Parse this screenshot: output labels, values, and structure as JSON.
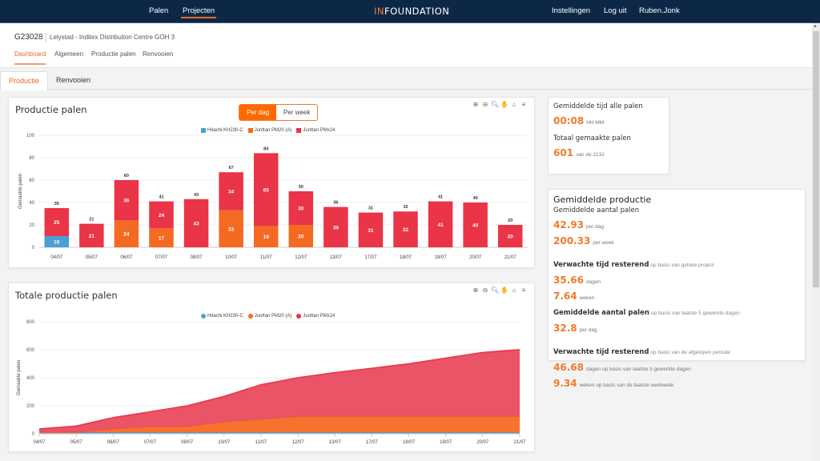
{
  "nav": {
    "left": [
      "Palen",
      "Projecten"
    ],
    "active": "Projecten",
    "logo_in": "IN",
    "logo_rest": "FOUNDATION",
    "right": [
      "Instellingen",
      "Log uit",
      "Ruben.Jonk"
    ]
  },
  "project": {
    "code": "G23028",
    "name": "Lelystad - Inditex Distribution Centre GOH 3",
    "subtabs": [
      "Dashboard",
      "Algemeen",
      "Productie palen",
      "Renvooien"
    ],
    "active_subtab": "Dashboard"
  },
  "tabs": [
    "Productie",
    "Renvooien"
  ],
  "active_tab": "Productie",
  "toolbar_icons": [
    "zoom-in-icon",
    "zoom-out-icon",
    "zoom-select-icon",
    "pan-icon",
    "home-icon",
    "menu-icon"
  ],
  "chart_data": [
    {
      "type": "bar",
      "stacked": true,
      "title": "Productie palen",
      "toggle": [
        "Per dag",
        "Per week"
      ],
      "toggle_active": "Per dag",
      "ylabel": "Gemaakte palen",
      "xlabel": "",
      "ylim": [
        0,
        100
      ],
      "yticks": [
        0,
        20,
        40,
        60,
        80,
        100
      ],
      "grid": true,
      "legend": "top-right",
      "categories": [
        "04/07",
        "05/07",
        "06/07",
        "07/07",
        "08/07",
        "10/07",
        "11/07",
        "12/07",
        "13/07",
        "17/07",
        "18/07",
        "19/07",
        "20/07",
        "21/07"
      ],
      "series": [
        {
          "name": "Hitachi KH230-C",
          "color": "#4a9fd6",
          "values": [
            10,
            0,
            0,
            0,
            0,
            0,
            0,
            0,
            0,
            0,
            0,
            0,
            0,
            0
          ]
        },
        {
          "name": "Junttan PM20 (A)",
          "color": "#f56a23",
          "values": [
            0,
            0,
            24,
            17,
            0,
            33,
            19,
            20,
            0,
            0,
            0,
            0,
            0,
            0
          ]
        },
        {
          "name": "Junttan PMx24",
          "color": "#ea3447",
          "values": [
            25,
            21,
            36,
            24,
            43,
            34,
            65,
            30,
            36,
            31,
            32,
            41,
            40,
            20
          ]
        }
      ],
      "totals": [
        35,
        21,
        60,
        41,
        43,
        67,
        84,
        50,
        36,
        31,
        32,
        41,
        40,
        20
      ]
    },
    {
      "type": "area",
      "stacked": true,
      "title": "Totale productie palen",
      "ylabel": "Gemaakte palen",
      "xlabel": "",
      "ylim": [
        0,
        800
      ],
      "yticks": [
        0,
        200,
        400,
        600,
        800
      ],
      "grid": true,
      "legend": "top-right",
      "categories": [
        "04/07",
        "05/07",
        "06/07",
        "07/07",
        "08/07",
        "10/07",
        "11/07",
        "12/07",
        "13/07",
        "17/07",
        "18/07",
        "19/07",
        "20/07",
        "21/07"
      ],
      "series": [
        {
          "name": "Hitachi KH230-C",
          "color": "#4a9fd6",
          "values": [
            10,
            10,
            10,
            10,
            10,
            10,
            10,
            10,
            10,
            10,
            10,
            10,
            10,
            10
          ]
        },
        {
          "name": "Junttan PM20 (A)",
          "color": "#f56a23",
          "values": [
            0,
            0,
            24,
            41,
            41,
            74,
            93,
            113,
            113,
            113,
            113,
            113,
            113,
            113
          ]
        },
        {
          "name": "Junttan PMx24",
          "color": "#ea3447",
          "values": [
            25,
            46,
            82,
            106,
            149,
            183,
            248,
            278,
            314,
            345,
            377,
            418,
            458,
            478
          ]
        }
      ]
    }
  ],
  "stats_card": {
    "avg_time_label": "Gemiddelde tijd alle palen",
    "avg_time_value": "00:08",
    "avg_time_unit": "HH:MM",
    "total_label": "Totaal gemaakte palen",
    "total_value": "601",
    "total_unit": "van de 2132"
  },
  "avg_card": {
    "title": "Gemiddelde productie",
    "avg_palen_label": "Gemiddelde aantal palen",
    "per_day_value": "42.93",
    "per_day_unit": "per dag",
    "per_week_value": "200.33",
    "per_week_unit": "per week",
    "remaining_label": "Verwachte tijd resterend",
    "remaining_note": "op basis van gehele project",
    "remaining_days": "35.66",
    "remaining_days_unit": "dagen",
    "remaining_weeks": "7.64",
    "remaining_weeks_unit": "weken",
    "avg5_label": "Gemiddelde aantal palen",
    "avg5_note": "op basis van laatste 5 gewerkte dagen",
    "avg5_value": "32.8",
    "avg5_unit": "per dag",
    "remaining2_label": "Verwachte tijd resterend",
    "remaining2_note": "op basis van de afgelopen periode",
    "remaining2_days": "46.68",
    "remaining2_days_unit": "dagen op basis van laatste 5 gewerkte dagen",
    "remaining2_weeks": "9.34",
    "remaining2_weeks_unit": "weken op basis van de laatste werkweek"
  }
}
